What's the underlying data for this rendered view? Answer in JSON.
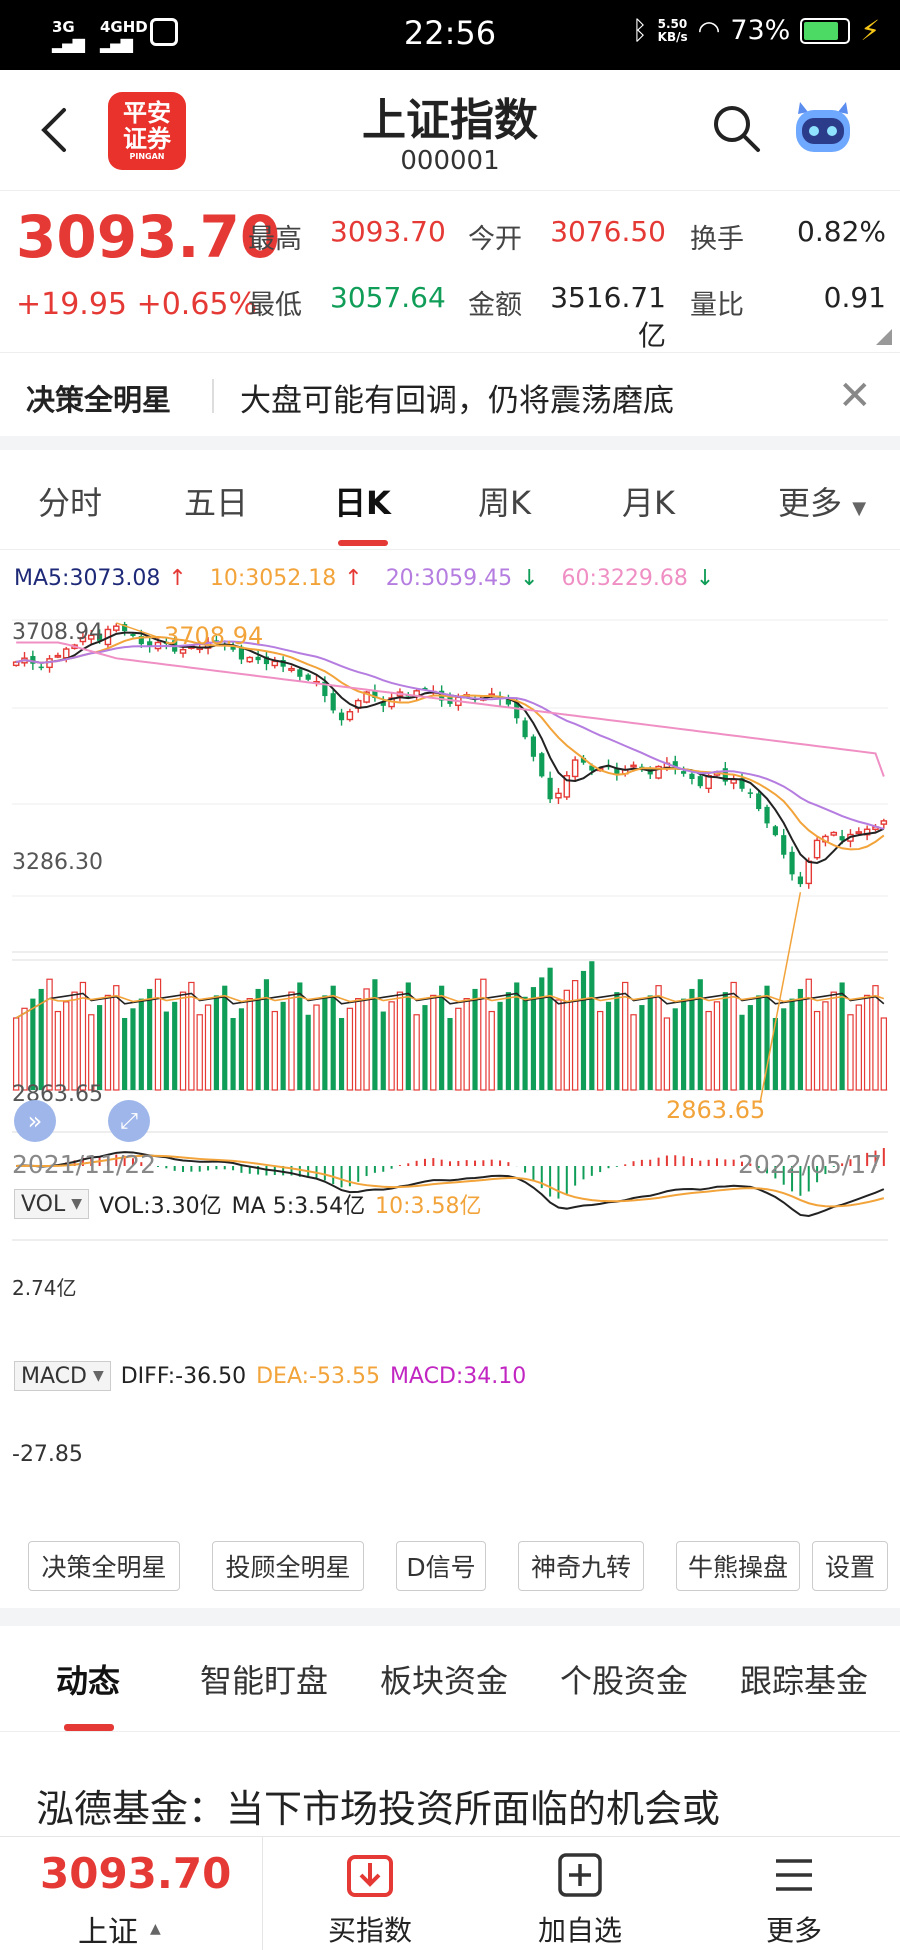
{
  "status_bar": {
    "net1": "3G",
    "net2": "4GHD",
    "time": "22:56",
    "speed_value": "5.50",
    "speed_unit": "KB/s",
    "battery": "73%"
  },
  "header": {
    "logo_line1": "平安",
    "logo_line2": "证券",
    "logo_line3": "PINGAN",
    "title": "上证指数",
    "code": "000001"
  },
  "quote": {
    "price": "3093.70",
    "change": "+19.95",
    "change_pct": "+0.65%",
    "high_label": "最高",
    "high": "3093.70",
    "open_label": "今开",
    "open": "3076.50",
    "turnover_label": "换手",
    "turnover": "0.82%",
    "low_label": "最低",
    "low": "3057.64",
    "amount_label": "金额",
    "amount": "3516.71亿",
    "ratio_label": "量比",
    "ratio": "0.91"
  },
  "decision": {
    "title": "决策全明星",
    "message": "大盘可能有回调，仍将震荡磨底"
  },
  "period_tabs": [
    "分时",
    "五日",
    "日K",
    "周K",
    "月K",
    "更多"
  ],
  "active_period": "日K",
  "ma_legend": {
    "ma5": "MA5:3073.08",
    "ma10": "10:3052.18",
    "ma20": "20:3059.45",
    "ma60": "60:3229.68",
    "up": "↑",
    "down": "↓"
  },
  "chart_data": {
    "type": "candlestick",
    "y_axis_labels": [
      "3708.94",
      "3286.30",
      "2863.65"
    ],
    "max_annotation": "3708.94",
    "min_annotation": "2863.65",
    "start_date": "2021/11/22",
    "end_date": "2022/05/17",
    "close": [
      3580,
      3592,
      3575,
      3564,
      3590,
      3600,
      3620,
      3632,
      3655,
      3662,
      3645,
      3680,
      3690,
      3675,
      3660,
      3635,
      3628,
      3640,
      3636,
      3612,
      3618,
      3630,
      3625,
      3640,
      3644,
      3632,
      3618,
      3588,
      3594,
      3586,
      3574,
      3582,
      3566,
      3560,
      3535,
      3526,
      3520,
      3476,
      3432,
      3402,
      3428,
      3462,
      3488,
      3470,
      3446,
      3470,
      3488,
      3475,
      3492,
      3496,
      3490,
      3462,
      3452,
      3472,
      3480,
      3466,
      3475,
      3482,
      3466,
      3450,
      3408,
      3350,
      3290,
      3230,
      3160,
      3178,
      3232,
      3280,
      3272,
      3248,
      3254,
      3262,
      3236,
      3250,
      3264,
      3250,
      3236,
      3260,
      3270,
      3255,
      3238,
      3222,
      3200,
      3232,
      3244,
      3214,
      3220,
      3192,
      3180,
      3130,
      3086,
      3050,
      2990,
      2930,
      2900,
      2970,
      3034,
      3046,
      3058,
      3034,
      3052,
      3060,
      3068,
      3075,
      3093.7
    ],
    "colors": {
      "up": "#e53935",
      "down": "#0f9d58",
      "ma5": "#222222",
      "ma10": "#f2a33a",
      "ma20": "#b57de0",
      "ma60": "#ef8fc4"
    }
  },
  "vol": {
    "selector": "VOL",
    "vol": "VOL:3.30亿",
    "ma5": "MA 5:3.54亿",
    "ma10": "10:3.58亿",
    "axis_label": "2.74亿"
  },
  "macd": {
    "selector": "MACD",
    "diff": "DIFF:-36.50",
    "dea": "DEA:-53.55",
    "macd": "MACD:34.10",
    "axis_label": "-27.85"
  },
  "tools": [
    "决策全明星",
    "投顾全明星",
    "D信号",
    "神奇九转",
    "牛熊操盘",
    "设置"
  ],
  "news_tabs": [
    "动态",
    "智能盯盘",
    "板块资金",
    "个股资金",
    "跟踪基金"
  ],
  "news_title": "泓德基金：当下市场投资所面临的机会或",
  "bottom_nav": {
    "price": "3093.70",
    "index": "上证",
    "buy": "买指数",
    "watch": "加自选",
    "more": "更多"
  }
}
